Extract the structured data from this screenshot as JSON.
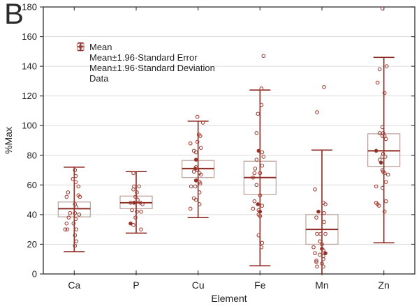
{
  "figure_label": "B",
  "colors": {
    "dark_red": "#8e2b22",
    "point_stroke": "#a2443a",
    "box_stroke": "#bb9f97",
    "grid": "#dcdcdc",
    "frame": "#3f3f3f",
    "text": "#1f1f1f"
  },
  "chart_data": {
    "type": "box",
    "title": "",
    "xlabel": "Element",
    "ylabel": "%Max",
    "ylim": [
      0,
      180
    ],
    "y_ticks": [
      0,
      20,
      40,
      60,
      80,
      100,
      120,
      140,
      160,
      180
    ],
    "grid": "horizontal",
    "legend_position": "top-left-inside",
    "legend": [
      {
        "label": "Mean",
        "symbol": "mean-line"
      },
      {
        "label": "Mean±1.96·Standard Error",
        "symbol": "se-box"
      },
      {
        "label": "Mean±1.96·Standard Deviation",
        "symbol": "sd-whisker"
      },
      {
        "label": "Data",
        "symbol": "data-point"
      }
    ],
    "categories": [
      "Ca",
      "P",
      "Cu",
      "Fe",
      "Mn",
      "Zn"
    ],
    "series": [
      {
        "element": "Ca",
        "mean": 44,
        "se_low": 38.5,
        "se_high": 48.5,
        "sd_low": 15,
        "sd_high": 72,
        "clip_low": false,
        "points": [
          [
            1,
            70
          ],
          [
            2,
            66
          ],
          [
            -2,
            64
          ],
          [
            2,
            62
          ],
          [
            6,
            59
          ],
          [
            -9,
            55
          ],
          [
            6,
            53
          ],
          [
            -11,
            52
          ],
          [
            8,
            52
          ],
          [
            1,
            47
          ],
          [
            3,
            45
          ],
          [
            -6,
            41
          ],
          [
            1,
            41
          ],
          [
            7,
            40
          ],
          [
            -8,
            38
          ],
          [
            2,
            37
          ],
          [
            -11,
            34
          ],
          [
            -1,
            34
          ],
          [
            -13,
            30
          ],
          [
            -10,
            30
          ],
          [
            3,
            30
          ],
          [
            1,
            26
          ],
          [
            3,
            22
          ],
          [
            1,
            19
          ]
        ]
      },
      {
        "element": "P",
        "mean": 48,
        "se_low": 44,
        "se_high": 52.5,
        "sd_low": 27.5,
        "sd_high": 69,
        "clip_low": false,
        "points": [
          [
            -4,
            68
          ],
          [
            -3,
            59
          ],
          [
            4,
            59
          ],
          [
            -4,
            57
          ],
          [
            1,
            55
          ],
          [
            -1,
            52
          ],
          [
            2,
            50
          ],
          [
            -8,
            48
          ],
          [
            -3,
            48,
            1
          ],
          [
            6,
            48
          ],
          [
            9,
            47
          ],
          [
            -6,
            43
          ],
          [
            1,
            42
          ],
          [
            7,
            42
          ],
          [
            -1,
            38
          ],
          [
            -8,
            34,
            1
          ],
          [
            -4,
            33
          ],
          [
            7,
            30
          ]
        ]
      },
      {
        "element": "Cu",
        "mean": 71,
        "se_low": 65,
        "se_high": 76.5,
        "sd_low": 38,
        "sd_high": 103,
        "clip_low": false,
        "points": [
          [
            -1,
            106
          ],
          [
            7,
            102
          ],
          [
            1,
            94
          ],
          [
            3,
            93
          ],
          [
            -1,
            89
          ],
          [
            -11,
            88
          ],
          [
            4,
            85
          ],
          [
            -6,
            83
          ],
          [
            -3,
            82
          ],
          [
            -3,
            77,
            1
          ],
          [
            -3,
            72
          ],
          [
            -4,
            71,
            1
          ],
          [
            -1,
            70
          ],
          [
            -6,
            69
          ],
          [
            2,
            68
          ],
          [
            4,
            67
          ],
          [
            -3,
            63,
            1
          ],
          [
            2,
            62
          ],
          [
            3,
            61
          ],
          [
            -10,
            59
          ],
          [
            -4,
            59
          ],
          [
            2,
            55
          ],
          [
            -6,
            51
          ],
          [
            -3,
            50
          ],
          [
            2,
            47
          ],
          [
            -11,
            44
          ]
        ]
      },
      {
        "element": "Fe",
        "mean": 65,
        "se_low": 53.5,
        "se_high": 76,
        "sd_low": 5.5,
        "sd_high": 124,
        "clip_low": false,
        "points": [
          [
            5,
            147
          ],
          [
            2,
            125
          ],
          [
            2,
            114
          ],
          [
            -3,
            108
          ],
          [
            -5,
            95
          ],
          [
            -2,
            83,
            1
          ],
          [
            3,
            82
          ],
          [
            5,
            79
          ],
          [
            -5,
            77
          ],
          [
            3,
            73
          ],
          [
            -7,
            71
          ],
          [
            -8,
            68
          ],
          [
            0,
            68
          ],
          [
            -10,
            65
          ],
          [
            -5,
            60
          ],
          [
            0,
            53
          ],
          [
            -8,
            49
          ],
          [
            -3,
            47,
            1
          ],
          [
            3,
            46
          ],
          [
            -10,
            44
          ],
          [
            -2,
            43
          ],
          [
            0,
            42,
            1
          ],
          [
            -2,
            40
          ],
          [
            0,
            39
          ],
          [
            -2,
            26
          ],
          [
            3,
            21
          ],
          [
            2,
            18
          ]
        ]
      },
      {
        "element": "Mn",
        "mean": 30,
        "se_low": 20,
        "se_high": 40,
        "sd_low": 0,
        "sd_high": 83.5,
        "clip_low": true,
        "points": [
          [
            3,
            126
          ],
          [
            -7,
            109
          ],
          [
            -10,
            57
          ],
          [
            2,
            48
          ],
          [
            5,
            47
          ],
          [
            -5,
            42,
            1
          ],
          [
            3,
            41
          ],
          [
            -8,
            38
          ],
          [
            3,
            35
          ],
          [
            -7,
            27
          ],
          [
            -2,
            27
          ],
          [
            5,
            27
          ],
          [
            -3,
            22
          ],
          [
            0,
            20
          ],
          [
            -12,
            18
          ],
          [
            0,
            17,
            1
          ],
          [
            2,
            16
          ],
          [
            -10,
            14
          ],
          [
            5,
            14,
            1
          ],
          [
            -3,
            13
          ],
          [
            2,
            12
          ],
          [
            2,
            10
          ],
          [
            -8,
            9
          ],
          [
            -8,
            8
          ],
          [
            0,
            7
          ],
          [
            -7,
            5
          ],
          [
            2,
            5
          ]
        ]
      },
      {
        "element": "Zn",
        "mean": 83,
        "se_low": 72.5,
        "se_high": 94.5,
        "sd_low": 21,
        "sd_high": 146,
        "clip_low": false,
        "points": [
          [
            -2,
            179
          ],
          [
            4,
            140
          ],
          [
            -6,
            138
          ],
          [
            -9,
            129
          ],
          [
            1,
            122
          ],
          [
            -2,
            99
          ],
          [
            -6,
            95
          ],
          [
            -1,
            95
          ],
          [
            -2,
            93
          ],
          [
            1,
            93
          ],
          [
            3,
            91
          ],
          [
            -11,
            83,
            1
          ],
          [
            -1,
            81
          ],
          [
            2,
            79
          ],
          [
            -2,
            79
          ],
          [
            -6,
            77
          ],
          [
            -4,
            75,
            1
          ],
          [
            -2,
            70
          ],
          [
            -1,
            69
          ],
          [
            1,
            68
          ],
          [
            6,
            67
          ],
          [
            3,
            62
          ],
          [
            -11,
            59
          ],
          [
            -2,
            58
          ],
          [
            3,
            49
          ],
          [
            -11,
            48
          ],
          [
            -9,
            47
          ],
          [
            -7,
            46
          ],
          [
            1,
            42
          ]
        ]
      }
    ]
  }
}
